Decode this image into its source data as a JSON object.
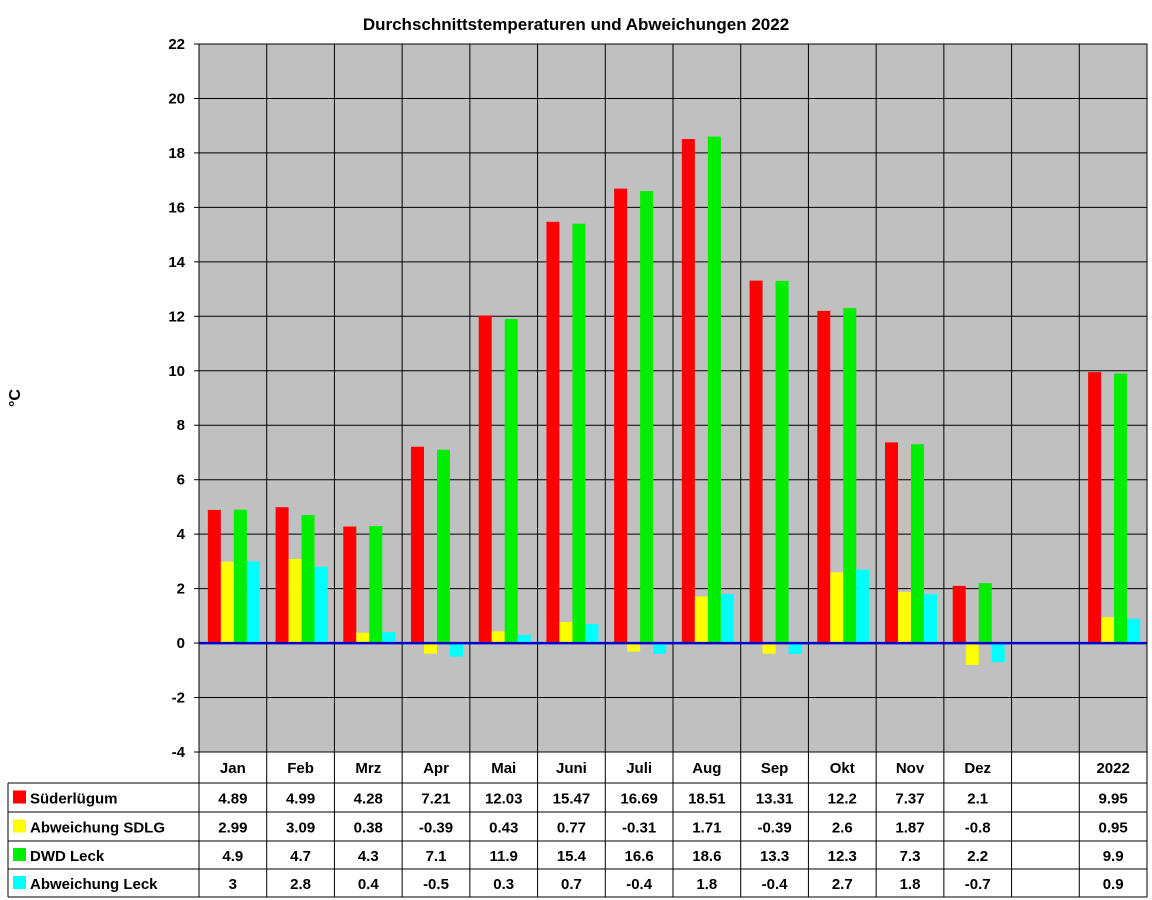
{
  "chart_data": {
    "type": "bar",
    "title": "Durchschnittstemperaturen und Abweichungen 2022",
    "ylabel": "°C",
    "xlabel": "",
    "ylim": [
      -4,
      22
    ],
    "yticks": [
      22,
      20,
      18,
      16,
      14,
      12,
      10,
      8,
      6,
      4,
      2,
      0,
      -2,
      -4
    ],
    "categories": [
      "Jan",
      "Feb",
      "Mrz",
      "Apr",
      "Mai",
      "Juni",
      "Juli",
      "Aug",
      "Sep",
      "Okt",
      "Nov",
      "Dez",
      "",
      "2022"
    ],
    "series": [
      {
        "name": "Süderlügum",
        "color": "#ff0000",
        "values": [
          4.89,
          4.99,
          4.28,
          7.21,
          12.03,
          15.47,
          16.69,
          18.51,
          13.31,
          12.2,
          7.37,
          2.1,
          null,
          9.95
        ],
        "labels": [
          "4.89",
          "4.99",
          "4.28",
          "7.21",
          "12.03",
          "15.47",
          "16.69",
          "18.51",
          "13.31",
          "12.2",
          "7.37",
          "2.1",
          "",
          "9.95"
        ]
      },
      {
        "name": "Abweichung SDLG",
        "color": "#ffff00",
        "values": [
          2.99,
          3.09,
          0.38,
          -0.39,
          0.43,
          0.77,
          -0.31,
          1.71,
          -0.39,
          2.6,
          1.87,
          -0.8,
          null,
          0.95
        ],
        "labels": [
          "2.99",
          "3.09",
          "0.38",
          "-0.39",
          "0.43",
          "0.77",
          "-0.31",
          "1.71",
          "-0.39",
          "2.6",
          "1.87",
          "-0.8",
          "",
          "0.95"
        ]
      },
      {
        "name": "DWD Leck",
        "color": "#00ee00",
        "values": [
          4.9,
          4.7,
          4.3,
          7.1,
          11.9,
          15.4,
          16.6,
          18.6,
          13.3,
          12.3,
          7.3,
          2.2,
          null,
          9.9
        ],
        "labels": [
          "4.9",
          "4.7",
          "4.3",
          "7.1",
          "11.9",
          "15.4",
          "16.6",
          "18.6",
          "13.3",
          "12.3",
          "7.3",
          "2.2",
          "",
          "9.9"
        ]
      },
      {
        "name": "Abweichung Leck",
        "color": "#00ffff",
        "values": [
          3,
          2.8,
          0.4,
          -0.5,
          0.3,
          0.7,
          -0.4,
          1.8,
          -0.4,
          2.7,
          1.8,
          -0.7,
          null,
          0.9
        ],
        "labels": [
          "3",
          "2.8",
          "0.4",
          "-0.5",
          "0.3",
          "0.7",
          "-0.4",
          "1.8",
          "-0.4",
          "2.7",
          "1.8",
          "-0.7",
          "",
          "0.9"
        ]
      }
    ],
    "plot_background": "#c0c0c0",
    "zero_line_color": "#0000cc",
    "grid": true,
    "legend": "data table below chart"
  }
}
